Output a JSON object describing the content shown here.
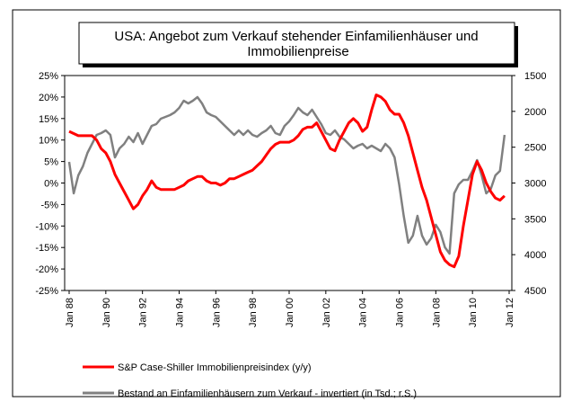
{
  "chart_data": {
    "type": "line",
    "title": "USA: Angebot zum Verkauf stehender Einfamilienhäuser und Immobilienpreise",
    "x": [
      "1988-01",
      "1988-04",
      "1988-07",
      "1988-10",
      "1989-01",
      "1989-04",
      "1989-07",
      "1989-10",
      "1990-01",
      "1990-04",
      "1990-07",
      "1990-10",
      "1991-01",
      "1991-04",
      "1991-07",
      "1991-10",
      "1992-01",
      "1992-04",
      "1992-07",
      "1992-10",
      "1993-01",
      "1993-04",
      "1993-07",
      "1993-10",
      "1994-01",
      "1994-04",
      "1994-07",
      "1994-10",
      "1995-01",
      "1995-04",
      "1995-07",
      "1995-10",
      "1996-01",
      "1996-04",
      "1996-07",
      "1996-10",
      "1997-01",
      "1997-04",
      "1997-07",
      "1997-10",
      "1998-01",
      "1998-04",
      "1998-07",
      "1998-10",
      "1999-01",
      "1999-04",
      "1999-07",
      "1999-10",
      "2000-01",
      "2000-04",
      "2000-07",
      "2000-10",
      "2001-01",
      "2001-04",
      "2001-07",
      "2001-10",
      "2002-01",
      "2002-04",
      "2002-07",
      "2002-10",
      "2003-01",
      "2003-04",
      "2003-07",
      "2003-10",
      "2004-01",
      "2004-04",
      "2004-07",
      "2004-10",
      "2005-01",
      "2005-04",
      "2005-07",
      "2005-10",
      "2006-01",
      "2006-04",
      "2006-07",
      "2006-10",
      "2007-01",
      "2007-04",
      "2007-07",
      "2007-10",
      "2008-01",
      "2008-04",
      "2008-07",
      "2008-10",
      "2009-01",
      "2009-04",
      "2009-07",
      "2009-10",
      "2010-01",
      "2010-04",
      "2010-07",
      "2010-10",
      "2011-01",
      "2011-04",
      "2011-07",
      "2011-10"
    ],
    "series": [
      {
        "name": "S&P Case-Shiller Immobilienpreisindex (y/y)",
        "color": "#ff0000",
        "axis": "y",
        "values": [
          12,
          11.5,
          11,
          11,
          11,
          11,
          10,
          8,
          7,
          5,
          2,
          0,
          -2,
          -4,
          -6,
          -5,
          -3,
          -1.5,
          0.5,
          -1,
          -1.5,
          -1.5,
          -1.5,
          -1.5,
          -1,
          -0.5,
          0.5,
          1,
          1.5,
          1.5,
          0.5,
          0,
          0,
          -0.5,
          0,
          1,
          1,
          1.5,
          2,
          2.5,
          3,
          4,
          5,
          6.5,
          8,
          9,
          9.5,
          9.5,
          9.5,
          10,
          11,
          12.5,
          13,
          13,
          14,
          12,
          10,
          8,
          7.5,
          10,
          12,
          14,
          15,
          14,
          12,
          13,
          17,
          20.5,
          20,
          19,
          17,
          16,
          16,
          14,
          11,
          7,
          3,
          -1,
          -4,
          -8,
          -12,
          -16,
          -18,
          -19,
          -19.5,
          -17,
          -10,
          -4,
          2,
          5,
          3,
          0,
          -2,
          -3.5,
          -4,
          -3
        ]
      },
      {
        "name": "Bestand an Einfamilienhäusern zum Verkauf - invertiert (in Tsd.; r.S.)",
        "color": "#808080",
        "axis": "y2",
        "values": [
          2705,
          3144,
          2893,
          2768,
          2579,
          2454,
          2328,
          2303,
          2266,
          2328,
          2642,
          2517,
          2454,
          2353,
          2429,
          2303,
          2454,
          2328,
          2203,
          2178,
          2102,
          2077,
          2052,
          2015,
          1952,
          1851,
          1889,
          1851,
          1801,
          1889,
          2015,
          2052,
          2077,
          2140,
          2203,
          2266,
          2328,
          2266,
          2328,
          2266,
          2328,
          2353,
          2303,
          2266,
          2203,
          2303,
          2328,
          2203,
          2140,
          2052,
          1952,
          2015,
          2052,
          1977,
          2077,
          2178,
          2303,
          2328,
          2266,
          2353,
          2391,
          2454,
          2517,
          2479,
          2454,
          2517,
          2479,
          2517,
          2554,
          2454,
          2517,
          2642,
          3019,
          3458,
          3834,
          3734,
          3458,
          3734,
          3859,
          3769,
          3583,
          3684,
          3897,
          3985,
          3144,
          3019,
          2956,
          2956,
          2830,
          2680,
          2893,
          3144,
          3081,
          2893,
          2830,
          2328
        ]
      }
    ],
    "xlim": [
      "1988-01",
      "2012-01"
    ],
    "xticks": [
      {
        "value": "1988-01",
        "label": "Jan 88"
      },
      {
        "value": "1990-01",
        "label": "Jan 90"
      },
      {
        "value": "1992-01",
        "label": "Jan 92"
      },
      {
        "value": "1994-01",
        "label": "Jan 94"
      },
      {
        "value": "1996-01",
        "label": "Jan 96"
      },
      {
        "value": "1998-01",
        "label": "Jan 98"
      },
      {
        "value": "2000-01",
        "label": "Jan 00"
      },
      {
        "value": "2002-01",
        "label": "Jan 02"
      },
      {
        "value": "2004-01",
        "label": "Jan 04"
      },
      {
        "value": "2006-01",
        "label": "Jan 06"
      },
      {
        "value": "2008-01",
        "label": "Jan 08"
      },
      {
        "value": "2010-01",
        "label": "Jan 10"
      },
      {
        "value": "2012-01",
        "label": "Jan 12"
      }
    ],
    "ylim": [
      -25,
      25
    ],
    "yticks": [
      {
        "value": -25,
        "label": "-25%"
      },
      {
        "value": -20,
        "label": "-20%"
      },
      {
        "value": -15,
        "label": "-15%"
      },
      {
        "value": -10,
        "label": "-10%"
      },
      {
        "value": -5,
        "label": "-5%"
      },
      {
        "value": 0,
        "label": "0%"
      },
      {
        "value": 5,
        "label": "5%"
      },
      {
        "value": 10,
        "label": "10%"
      },
      {
        "value": 15,
        "label": "15%"
      },
      {
        "value": 20,
        "label": "20%"
      },
      {
        "value": 25,
        "label": "25%"
      }
    ],
    "y2lim": [
      1500,
      4500
    ],
    "y2ticks": [
      1500,
      2000,
      2500,
      3000,
      3500,
      4000,
      4500
    ],
    "y2_inverted": true,
    "grid": false,
    "legend": "bottom"
  }
}
